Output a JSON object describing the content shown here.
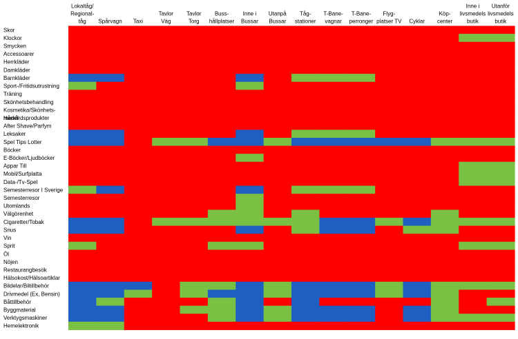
{
  "chart_data": {
    "type": "heatmap",
    "title": "",
    "xlabel": "",
    "ylabel": "",
    "grid": false,
    "legend": "none",
    "colors": {
      "R": "#ff0000",
      "G": "#7ac143",
      "B": "#1f5fc2"
    },
    "columns": [
      [
        "Lokaltåg/",
        "Regional-",
        "tåg"
      ],
      [
        "Spårvagn"
      ],
      [
        "Taxi"
      ],
      [
        "Tavlor",
        "Väg"
      ],
      [
        "Tavlor",
        "Torg"
      ],
      [
        "Buss-",
        "hållplatser"
      ],
      [
        "Inne i",
        "Bussar"
      ],
      [
        "Utanpå",
        "Bussar"
      ],
      [
        "Tåg-",
        "stationer"
      ],
      [
        "T-Bane-",
        "vagnar"
      ],
      [
        "T-Bane-",
        "perronger"
      ],
      [
        "Flyg-",
        "platser TV"
      ],
      [
        "Cyklar"
      ],
      [
        "Köp-",
        "center"
      ],
      [
        "Inne i",
        "livsmedels",
        "butik"
      ],
      [
        "Utanför",
        "livsmedels",
        "butik"
      ]
    ],
    "rows": [
      {
        "label": [
          "Skor"
        ],
        "cells": "RRRRRRRRRRRRRRRR"
      },
      {
        "label": [
          "Klockor"
        ],
        "cells": "RRRRRRRRRRRRRRGG"
      },
      {
        "label": [
          "Smycken"
        ],
        "cells": "RRRRRRRRRRRRRRRR"
      },
      {
        "label": [
          "Accessoarer"
        ],
        "cells": "RRRRRRRRRRRRRRRR"
      },
      {
        "label": [
          "Herrkläder"
        ],
        "cells": "RRRRRRRRRRRRRRRR"
      },
      {
        "label": [
          "Damkläder"
        ],
        "cells": "RRRRRRRRRRRRRRRR"
      },
      {
        "label": [
          "Barnkläder"
        ],
        "cells": "BBRRRRBRGGGRRRRR"
      },
      {
        "label": [
          "Sport-/Fritidsutrustning"
        ],
        "cells": "GRRRRRGRRRRRRRRR"
      },
      {
        "label": [
          "Träning"
        ],
        "cells": "RRRRRRRRRRRRRRRR"
      },
      {
        "label": [
          "Skönhetsbehandling"
        ],
        "cells": "RRRRRRRRRRRRRRRR"
      },
      {
        "label": [
          "Kosmetika/Skönhets-",
          "medel"
        ],
        "cells": "RRRRRRRRRRRRRRRR"
      },
      {
        "label": [
          "Hårvårdsprodukter"
        ],
        "cells": "RRRRRRRRRRRRRRRR"
      },
      {
        "label": [
          "After Shave/Parfym"
        ],
        "cells": "RRRRRRRRRRRRRRRR"
      },
      {
        "label": [
          "Leksaker"
        ],
        "cells": "BBRRRRBRGGGRRRRR"
      },
      {
        "label": [
          "Spel Tips Lotter"
        ],
        "cells": "BBRGGBBGBBBBBGGG"
      },
      {
        "label": [
          "Böcker"
        ],
        "cells": "RRRRRRRRRRRRRRRR"
      },
      {
        "label": [
          "E-Böcker/Ljudböcker"
        ],
        "cells": "RRRRRRGRRRRRRRRR"
      },
      {
        "label": [
          "Appar Till"
        ],
        "cells": "RRRRRRRRRRRRRRGG"
      },
      {
        "label": [
          "Mobil/Surfplatta"
        ],
        "cells": "RRRRRRRRRRRRRRGG"
      },
      {
        "label": [
          "Data-/Tv-Spel"
        ],
        "cells": "RRRRRRRRRRRRRRGG"
      },
      {
        "label": [
          "Semesterresor I Sverige"
        ],
        "cells": "GBRRRRBRGGGRRRRR"
      },
      {
        "label": [
          "Semesterresor"
        ],
        "cells": "RRRRRRGRRRRRRRRR"
      },
      {
        "label": [
          "Utomlands"
        ],
        "cells": "RRRRRRGRRRRRRRRR"
      },
      {
        "label": [
          "Välgörenhet"
        ],
        "cells": "RRRRRGGRGRRRRGRR"
      },
      {
        "label": [
          "Cigaretter/Tobak"
        ],
        "cells": "BBRGGGGGGBBGBGGG"
      },
      {
        "label": [
          "Snus"
        ],
        "cells": "BBRRRRBRGBBRGGRR"
      },
      {
        "label": [
          "Vin"
        ],
        "cells": "RRRRRRRRRRRRRRRR"
      },
      {
        "label": [
          "Sprit"
        ],
        "cells": "GRRRRGGRRRRRRRGG"
      },
      {
        "label": [
          "Öl"
        ],
        "cells": "RRRRRRRRRRRRRRRR"
      },
      {
        "label": [
          "Nöjen"
        ],
        "cells": "RRRRRRRRRRRRRRRR"
      },
      {
        "label": [
          "Restaurangbesök"
        ],
        "cells": "RRRRRRRRRRRRRRRR"
      },
      {
        "label": [
          "Hälsokost/Hälsoartiklar"
        ],
        "cells": "RRRRRRRRRRRRRRRR"
      },
      {
        "label": [
          "Bildelar/Biltillbehör"
        ],
        "cells": "BBBRGGBGBBBGBGGG"
      },
      {
        "label": [
          "Drivmedel (Ex, Bensin)"
        ],
        "cells": "BBGRGBBGBBBGBGRR"
      },
      {
        "label": [
          "Båttillbehör"
        ],
        "cells": "BGRRRGBRBRRRRGRG"
      },
      {
        "label": [
          "Byggmaterial"
        ],
        "cells": "BBRRGGBGBBBRBGRR"
      },
      {
        "label": [
          "Verktygsmaskiner"
        ],
        "cells": "BBRRRGBGBBBRBGGG"
      },
      {
        "label": [
          "Hemelektronik"
        ],
        "cells": "GGRRRRRRRRRRRRRR"
      }
    ]
  }
}
